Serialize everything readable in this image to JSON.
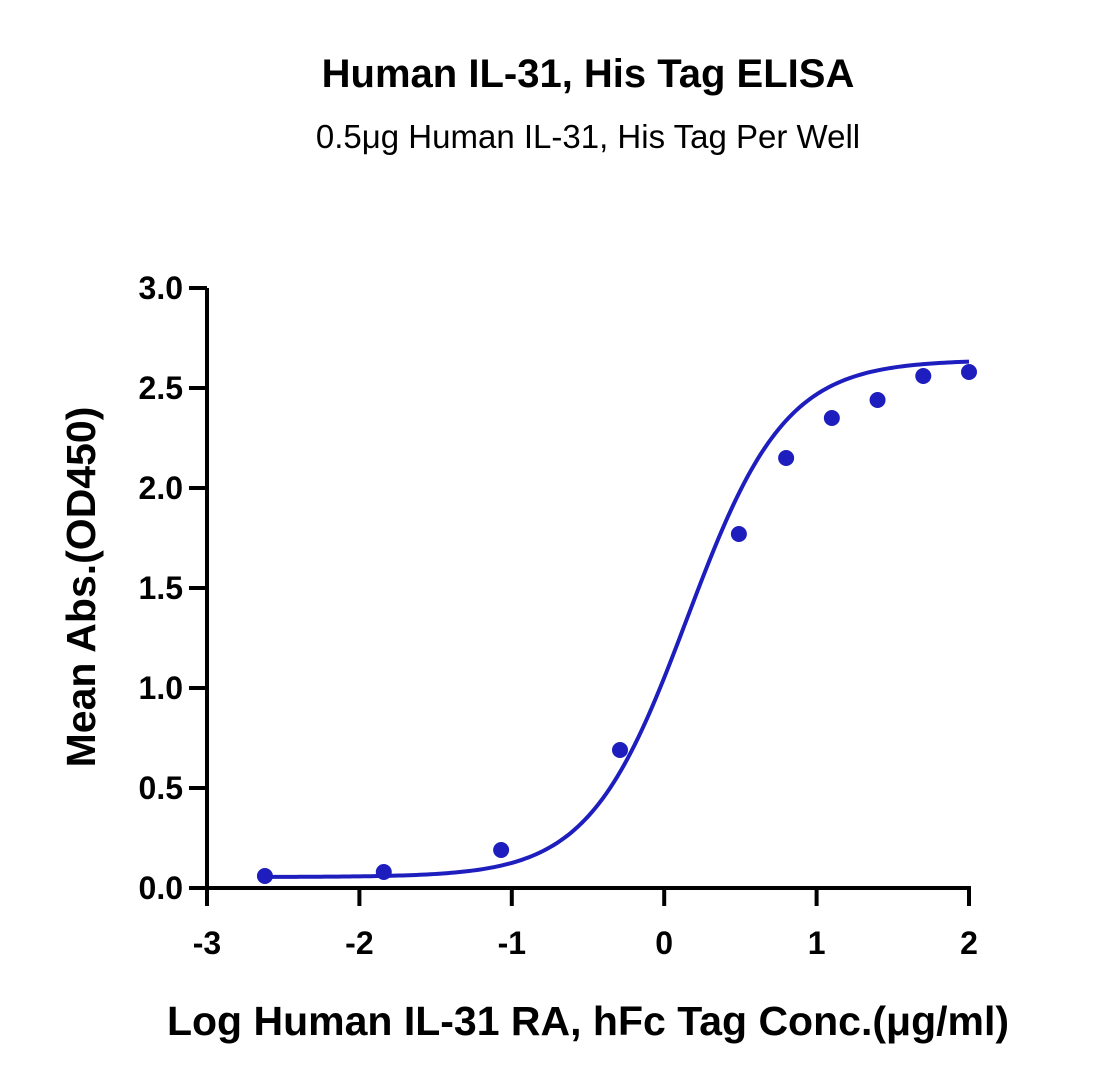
{
  "chart_data": {
    "type": "scatter",
    "title": "Human IL-31, His Tag ELISA",
    "subtitle": "0.5μg Human IL-31, His Tag Per Well",
    "xlabel": "Log Human IL-31 RA, hFc  Tag Conc.(μg/ml)",
    "ylabel": "Mean Abs.(OD450)",
    "xlim": [
      -3,
      2
    ],
    "ylim": [
      0,
      3
    ],
    "x_ticks": [
      -3,
      -2,
      -1,
      0,
      1,
      2
    ],
    "x_tick_labels": [
      "-3",
      "-2",
      "-1",
      "0",
      "1",
      "2"
    ],
    "y_ticks": [
      0,
      0.5,
      1,
      1.5,
      2,
      2.5,
      3
    ],
    "y_tick_labels": [
      "0.0",
      "0.5",
      "1.0",
      "1.5",
      "2.0",
      "2.5",
      "3.0"
    ],
    "grid": false,
    "legend": "none",
    "series": [
      {
        "color": "#1e1ebe",
        "points": [
          {
            "x": -2.62,
            "y": 0.06
          },
          {
            "x": -1.84,
            "y": 0.08
          },
          {
            "x": -1.07,
            "y": 0.19
          },
          {
            "x": -0.29,
            "y": 0.69
          },
          {
            "x": 0.49,
            "y": 1.77
          },
          {
            "x": 0.8,
            "y": 2.15
          },
          {
            "x": 1.1,
            "y": 2.35
          },
          {
            "x": 1.4,
            "y": 2.44
          },
          {
            "x": 1.7,
            "y": 2.56
          },
          {
            "x": 2.0,
            "y": 2.58
          }
        ],
        "fit": {
          "model": "4PL",
          "bottom": 0.055,
          "top": 2.64,
          "logEC50": 0.15,
          "hill": 1.35
        }
      }
    ]
  }
}
